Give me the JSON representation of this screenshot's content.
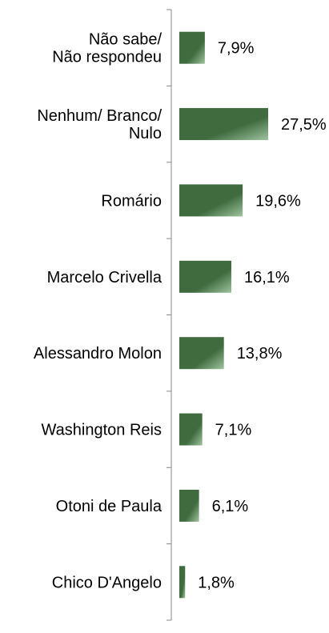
{
  "chart_data": {
    "type": "bar",
    "orientation": "horizontal",
    "categories": [
      [
        "Não sabe/",
        "Não respondeu"
      ],
      [
        "Nenhum/ Branco/",
        "Nulo"
      ],
      [
        "Romário"
      ],
      [
        "Marcelo Crivella"
      ],
      [
        "Alessandro Molon"
      ],
      [
        "Washington Reis"
      ],
      [
        "Otoni de Paula"
      ],
      [
        "Chico D'Angelo"
      ]
    ],
    "values": [
      7.9,
      27.5,
      19.6,
      16.1,
      13.8,
      7.1,
      6.1,
      1.8
    ],
    "value_labels": [
      "7,9%",
      "27,5%",
      "19,6%",
      "16,1%",
      "13,8%",
      "7,1%",
      "6,1%",
      "1,8%"
    ],
    "title": "",
    "xlabel": "",
    "ylabel": "",
    "xlim": [
      0,
      35
    ],
    "grid": false,
    "legend": "none",
    "colors": {
      "bar_dark": "#3f6b3f",
      "bar_light": "#9fc49f",
      "axis": "#888888",
      "text": "#000000"
    }
  }
}
